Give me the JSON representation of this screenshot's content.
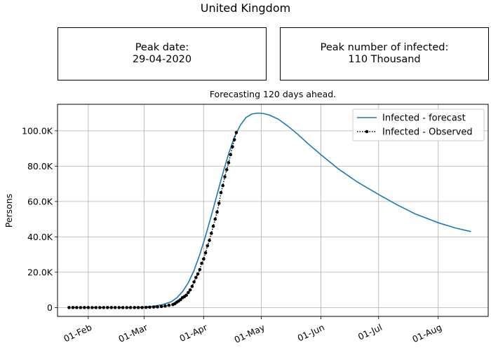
{
  "suptitle": "United Kingdom",
  "boxes": {
    "peak_date_label": "Peak date:",
    "peak_date_value": "29-04-2020",
    "peak_number_label": "Peak number of infected:",
    "peak_number_value": "110 Thousand"
  },
  "chart_data": {
    "type": "line",
    "title": "Forecasting 120 days ahead.",
    "xlabel": "",
    "ylabel": "Persons",
    "x_axis": {
      "type": "date",
      "range": [
        "2020-01-16",
        "2020-08-27"
      ],
      "ticks": [
        {
          "date": "2020-02-01",
          "label": "01-Feb"
        },
        {
          "date": "2020-03-01",
          "label": "01-Mar"
        },
        {
          "date": "2020-04-01",
          "label": "01-Apr"
        },
        {
          "date": "2020-05-01",
          "label": "01-May"
        },
        {
          "date": "2020-06-01",
          "label": "01-Jun"
        },
        {
          "date": "2020-07-01",
          "label": "01-Jul"
        },
        {
          "date": "2020-08-01",
          "label": "01-Aug"
        }
      ]
    },
    "y_axis": {
      "range": [
        -5000,
        115000
      ],
      "ticks": [
        {
          "value": 0,
          "label": "0"
        },
        {
          "value": 20000,
          "label": "20.0K"
        },
        {
          "value": 40000,
          "label": "40.0K"
        },
        {
          "value": 60000,
          "label": "60.0K"
        },
        {
          "value": 80000,
          "label": "80.0K"
        },
        {
          "value": 100000,
          "label": "100.0K"
        }
      ]
    },
    "grid": true,
    "legend_position": "top-right",
    "series": [
      {
        "name": "Infected - forecast",
        "style": "solid-line",
        "color": "#1f77b4",
        "points": [
          [
            "2020-02-25",
            0
          ],
          [
            "2020-03-01",
            300
          ],
          [
            "2020-03-05",
            700
          ],
          [
            "2020-03-10",
            1500
          ],
          [
            "2020-03-15",
            3200
          ],
          [
            "2020-03-18",
            5500
          ],
          [
            "2020-03-21",
            9000
          ],
          [
            "2020-03-24",
            14000
          ],
          [
            "2020-03-27",
            21000
          ],
          [
            "2020-03-30",
            30000
          ],
          [
            "2020-04-02",
            40500
          ],
          [
            "2020-04-05",
            52000
          ],
          [
            "2020-04-08",
            64000
          ],
          [
            "2020-04-11",
            76000
          ],
          [
            "2020-04-14",
            87000
          ],
          [
            "2020-04-17",
            96500
          ],
          [
            "2020-04-20",
            103000
          ],
          [
            "2020-04-23",
            107500
          ],
          [
            "2020-04-26",
            109500
          ],
          [
            "2020-04-29",
            110000
          ],
          [
            "2020-05-02",
            109800
          ],
          [
            "2020-05-05",
            109000
          ],
          [
            "2020-05-10",
            106500
          ],
          [
            "2020-05-15",
            102500
          ],
          [
            "2020-05-20",
            98000
          ],
          [
            "2020-05-25",
            93000
          ],
          [
            "2020-06-01",
            86500
          ],
          [
            "2020-06-10",
            78500
          ],
          [
            "2020-06-20",
            71000
          ],
          [
            "2020-07-01",
            64000
          ],
          [
            "2020-07-10",
            58500
          ],
          [
            "2020-07-20",
            53000
          ],
          [
            "2020-08-01",
            48000
          ],
          [
            "2020-08-10",
            45000
          ],
          [
            "2020-08-18",
            43000
          ]
        ]
      },
      {
        "name": "Infected - Observed",
        "style": "dotted-with-markers",
        "color": "#000000",
        "points": [
          [
            "2020-01-22",
            0
          ],
          [
            "2020-01-24",
            0
          ],
          [
            "2020-01-26",
            0
          ],
          [
            "2020-01-28",
            0
          ],
          [
            "2020-01-30",
            0
          ],
          [
            "2020-02-01",
            0
          ],
          [
            "2020-02-03",
            0
          ],
          [
            "2020-02-05",
            0
          ],
          [
            "2020-02-07",
            0
          ],
          [
            "2020-02-09",
            0
          ],
          [
            "2020-02-11",
            0
          ],
          [
            "2020-02-13",
            0
          ],
          [
            "2020-02-15",
            0
          ],
          [
            "2020-02-17",
            0
          ],
          [
            "2020-02-19",
            0
          ],
          [
            "2020-02-21",
            0
          ],
          [
            "2020-02-23",
            0
          ],
          [
            "2020-02-25",
            0
          ],
          [
            "2020-02-27",
            0
          ],
          [
            "2020-02-29",
            0
          ],
          [
            "2020-03-02",
            100
          ],
          [
            "2020-03-04",
            200
          ],
          [
            "2020-03-06",
            300
          ],
          [
            "2020-03-08",
            400
          ],
          [
            "2020-03-10",
            600
          ],
          [
            "2020-03-12",
            900
          ],
          [
            "2020-03-14",
            1300
          ],
          [
            "2020-03-16",
            1700
          ],
          [
            "2020-03-17",
            2200
          ],
          [
            "2020-03-18",
            3000
          ],
          [
            "2020-03-19",
            3700
          ],
          [
            "2020-03-20",
            4500
          ],
          [
            "2020-03-21",
            5600
          ],
          [
            "2020-03-22",
            6200
          ],
          [
            "2020-03-23",
            7000
          ],
          [
            "2020-03-24",
            8500
          ],
          [
            "2020-03-25",
            10000
          ],
          [
            "2020-03-26",
            12000
          ],
          [
            "2020-03-27",
            14500
          ],
          [
            "2020-03-28",
            17000
          ],
          [
            "2020-03-29",
            19000
          ],
          [
            "2020-03-30",
            21500
          ],
          [
            "2020-03-31",
            25000
          ],
          [
            "2020-04-01",
            27500
          ],
          [
            "2020-04-02",
            31000
          ],
          [
            "2020-04-03",
            35000
          ],
          [
            "2020-04-04",
            38000
          ],
          [
            "2020-04-05",
            42000
          ],
          [
            "2020-04-06",
            46000
          ],
          [
            "2020-04-07",
            50000
          ],
          [
            "2020-04-08",
            54000
          ],
          [
            "2020-04-09",
            59000
          ],
          [
            "2020-04-10",
            65000
          ],
          [
            "2020-04-11",
            69000
          ],
          [
            "2020-04-12",
            74000
          ],
          [
            "2020-04-13",
            78000
          ],
          [
            "2020-04-14",
            82000
          ],
          [
            "2020-04-15",
            86500
          ],
          [
            "2020-04-16",
            91000
          ],
          [
            "2020-04-17",
            95000
          ],
          [
            "2020-04-18",
            99000
          ]
        ]
      }
    ]
  }
}
